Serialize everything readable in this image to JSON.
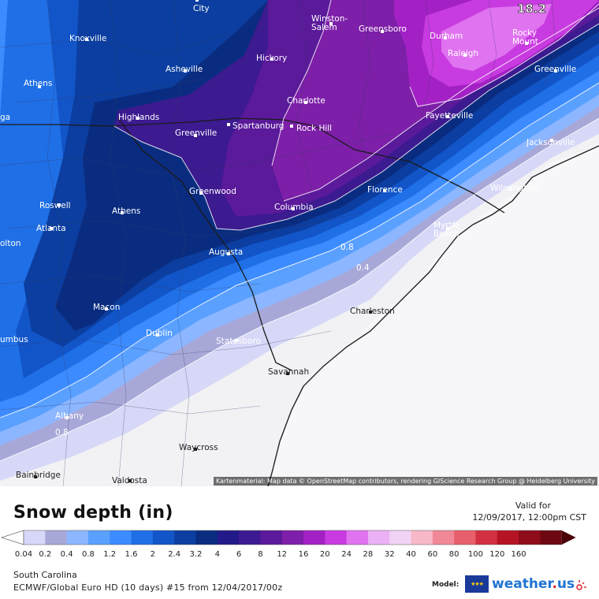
{
  "map": {
    "peak_value": "18.2",
    "attribution": "Kartenmaterial: Map data © OpenStreetMap contributors, rendering GIScience Research Group @ Heidelberg University",
    "cities": [
      {
        "name": "City",
        "dark": false
      },
      {
        "name": "Knoxville",
        "dark": false
      },
      {
        "name": "Winston-\nSalem",
        "dark": false
      },
      {
        "name": "Greensboro",
        "dark": false
      },
      {
        "name": "Durham",
        "dark": false
      },
      {
        "name": "Rocky\nMount",
        "dark": false
      },
      {
        "name": "Raleigh",
        "dark": false
      },
      {
        "name": "Athens",
        "dark": false
      },
      {
        "name": "Asheville",
        "dark": false
      },
      {
        "name": "Hickory",
        "dark": false
      },
      {
        "name": "Greenville",
        "dark": false
      },
      {
        "name": "Charlotte",
        "dark": false
      },
      {
        "name": "Fayetteville",
        "dark": false
      },
      {
        "name": "Highlands",
        "dark": false
      },
      {
        "name": "Spartanburg",
        "dark": false
      },
      {
        "name": "Rock Hill",
        "dark": false
      },
      {
        "name": "Greenville",
        "dark": false
      },
      {
        "name": "Jacksonville",
        "dark": false
      },
      {
        "name": "Roswell",
        "dark": false
      },
      {
        "name": "Athens",
        "dark": false
      },
      {
        "name": "Greenwood",
        "dark": false
      },
      {
        "name": "Florence",
        "dark": false
      },
      {
        "name": "Wilmington",
        "dark": false
      },
      {
        "name": "Atlanta",
        "dark": false
      },
      {
        "name": "Columbia",
        "dark": false
      },
      {
        "name": "Myrtle\nBeach",
        "dark": false
      },
      {
        "name": "Augusta",
        "dark": false
      },
      {
        "name": "Macon",
        "dark": false
      },
      {
        "name": "Charleston",
        "dark": true
      },
      {
        "name": "Dublin",
        "dark": false
      },
      {
        "name": "Statesboro",
        "dark": false
      },
      {
        "name": "Savannah",
        "dark": true
      },
      {
        "name": "Albany",
        "dark": false
      },
      {
        "name": "Waycross",
        "dark": true
      },
      {
        "name": "Bainbridge",
        "dark": true
      },
      {
        "name": "Valdosta",
        "dark": true
      },
      {
        "name": "olton",
        "dark": false
      },
      {
        "name": "umbus",
        "dark": false
      },
      {
        "name": "ga",
        "dark": false
      }
    ],
    "contour_labels": [
      "0.8",
      "0.4",
      "0.8"
    ]
  },
  "legend": {
    "title": "Snow depth (in)",
    "valid_for_label": "Valid for",
    "valid_datetime": "12/09/2017, 12:00pm CST",
    "ticks": [
      "0.04",
      "0.2",
      "0.4",
      "0.8",
      "1.2",
      "1.6",
      "2",
      "2.4",
      "3.2",
      "4",
      "6",
      "8",
      "12",
      "16",
      "20",
      "24",
      "28",
      "32",
      "40",
      "60",
      "80",
      "100",
      "120",
      "160"
    ],
    "colors": [
      "#ffffff",
      "#d7d7f7",
      "#a8a8d8",
      "#8cb6ff",
      "#5aa0ff",
      "#3c8cff",
      "#1f6fe6",
      "#1255c8",
      "#0b3ea0",
      "#0a2c80",
      "#221a88",
      "#3c1a90",
      "#5a1a9a",
      "#7d1fa8",
      "#a321c4",
      "#c83be0",
      "#e073f0",
      "#ebb0f5",
      "#f3d3f5",
      "#f7b8c8",
      "#f08898",
      "#e85f6c",
      "#d23042",
      "#b51424",
      "#8f0c1a",
      "#6d0810",
      "#4a0308"
    ],
    "region": "South Carolina",
    "model_run": "ECMWF/Global Euro HD (10 days) #15 from 12/04/2017/00z",
    "model_label": "Model:",
    "brand": "weather",
    "brand_tld": "us"
  }
}
